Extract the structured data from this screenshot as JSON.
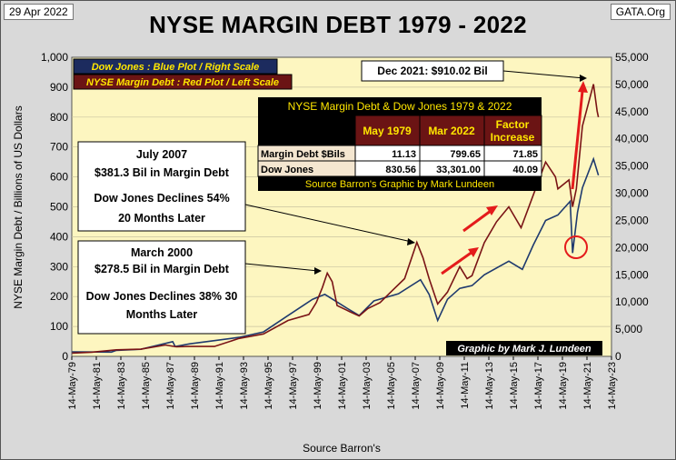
{
  "header": {
    "date": "29 Apr 2022",
    "source_tag": "GATA.Org",
    "title": "NYSE MARGIN DEBT 1979 - 2022"
  },
  "legend": {
    "blue": "Dow Jones : Blue Plot / Right Scale",
    "red": "NYSE Margin Debt : Red Plot / Left Scale"
  },
  "callouts": {
    "dec2021": "Dec 2021:  $910.02  Bil",
    "jul2007": {
      "l1": "July 2007",
      "l2": "$381.3  Bil in Margin Debt",
      "l3": "Dow Jones Declines 54%",
      "l4": "20 Months Later"
    },
    "mar2000": {
      "l1": "March  2000",
      "l2": "$278.5  Bil in Margin Debt",
      "l3": "Dow Jones Declines 38% 30",
      "l4": "Months Later"
    }
  },
  "table": {
    "title": "NYSE Margin Debt & Dow Jones 1979 & 2022",
    "headers": [
      "",
      "May 1979",
      "Mar 2022",
      "Factor Increase"
    ],
    "rows": [
      [
        "Margin Debt $Bils",
        "11.13",
        "799.65",
        "71.85"
      ],
      [
        "Dow Jones",
        "830.56",
        "33,301.00",
        "40.09"
      ]
    ],
    "footer": "Source Barron's Graphic by Mark Lundeen"
  },
  "credit": "Graphic by Mark J. Lundeen",
  "colors": {
    "margin": "#7a1416",
    "dow": "#1f3a6e",
    "plot_bg": "#fdf6c0",
    "arrow": "#e41b1b"
  },
  "chart_data": {
    "type": "line",
    "xlabel": "Source Barron's",
    "ylabel": "NYSE Margin Debt  / Billions of  US Dollars",
    "x_ticks": [
      "14-May-79",
      "14-May-81",
      "14-May-83",
      "14-May-85",
      "14-May-87",
      "14-May-89",
      "14-May-91",
      "14-May-93",
      "14-May-95",
      "14-May-97",
      "14-May-99",
      "14-May-01",
      "14-May-03",
      "14-May-05",
      "14-May-07",
      "14-May-09",
      "14-May-11",
      "14-May-13",
      "14-May-15",
      "14-May-17",
      "14-May-19",
      "14-May-21",
      "14-May-23"
    ],
    "x_range": [
      1979.37,
      2023.37
    ],
    "ylim_left": [
      0,
      1000
    ],
    "yticks_left": [
      "0",
      "100",
      "200",
      "300",
      "400",
      "500",
      "600",
      "700",
      "800",
      "900",
      "1,000"
    ],
    "ylim_right": [
      0,
      55000
    ],
    "yticks_right": [
      "0",
      "5,000",
      "10,000",
      "15,000",
      "20,000",
      "25,000",
      "30,000",
      "35,000",
      "40,000",
      "45,000",
      "50,000",
      "55,000"
    ],
    "series": [
      {
        "name": "NYSE Margin Debt ($Bil, left scale)",
        "points": [
          [
            1979.4,
            11
          ],
          [
            1981,
            14
          ],
          [
            1983,
            22
          ],
          [
            1985,
            24
          ],
          [
            1987,
            38
          ],
          [
            1987.9,
            32
          ],
          [
            1989,
            33
          ],
          [
            1991,
            33
          ],
          [
            1993,
            60
          ],
          [
            1995,
            75
          ],
          [
            1997,
            120
          ],
          [
            1998.7,
            140
          ],
          [
            1999.3,
            180
          ],
          [
            1999.8,
            230
          ],
          [
            2000.2,
            278.5
          ],
          [
            2000.6,
            250
          ],
          [
            2001,
            170
          ],
          [
            2002,
            150
          ],
          [
            2002.8,
            135
          ],
          [
            2003.5,
            160
          ],
          [
            2004.5,
            180
          ],
          [
            2005.5,
            220
          ],
          [
            2006.5,
            260
          ],
          [
            2007.5,
            381.3
          ],
          [
            2008,
            330
          ],
          [
            2008.5,
            260
          ],
          [
            2009.2,
            175
          ],
          [
            2010,
            215
          ],
          [
            2011,
            300
          ],
          [
            2011.6,
            260
          ],
          [
            2012,
            270
          ],
          [
            2013,
            380
          ],
          [
            2014,
            450
          ],
          [
            2015,
            500
          ],
          [
            2016,
            430
          ],
          [
            2017,
            540
          ],
          [
            2018,
            650
          ],
          [
            2018.8,
            600
          ],
          [
            2019,
            560
          ],
          [
            2019.9,
            590
          ],
          [
            2020.2,
            500
          ],
          [
            2020.5,
            560
          ],
          [
            2021,
            770
          ],
          [
            2021.9,
            910.02
          ],
          [
            2022.2,
            820
          ],
          [
            2022.3,
            800
          ]
        ]
      },
      {
        "name": "Dow Jones (right scale)",
        "points": [
          [
            1979.4,
            830
          ],
          [
            1982.6,
            780
          ],
          [
            1983,
            1100
          ],
          [
            1985,
            1300
          ],
          [
            1987.6,
            2700
          ],
          [
            1987.8,
            1800
          ],
          [
            1989,
            2300
          ],
          [
            1991,
            2900
          ],
          [
            1993,
            3500
          ],
          [
            1995,
            4500
          ],
          [
            1997,
            7500
          ],
          [
            1999,
            10500
          ],
          [
            2000,
            11400
          ],
          [
            2001.7,
            9000
          ],
          [
            2002.8,
            7500
          ],
          [
            2004,
            10200
          ],
          [
            2006,
            11500
          ],
          [
            2007.8,
            14100
          ],
          [
            2008.5,
            11400
          ],
          [
            2009.2,
            6600
          ],
          [
            2010,
            10500
          ],
          [
            2011,
            12500
          ],
          [
            2012,
            13000
          ],
          [
            2013,
            15000
          ],
          [
            2015,
            17500
          ],
          [
            2016.1,
            16000
          ],
          [
            2017,
            20500
          ],
          [
            2018,
            25000
          ],
          [
            2019,
            26000
          ],
          [
            2020,
            28500
          ],
          [
            2020.2,
            19000
          ],
          [
            2020.6,
            26500
          ],
          [
            2021,
            31000
          ],
          [
            2021.9,
            36300
          ],
          [
            2022.3,
            33300
          ]
        ]
      }
    ]
  }
}
